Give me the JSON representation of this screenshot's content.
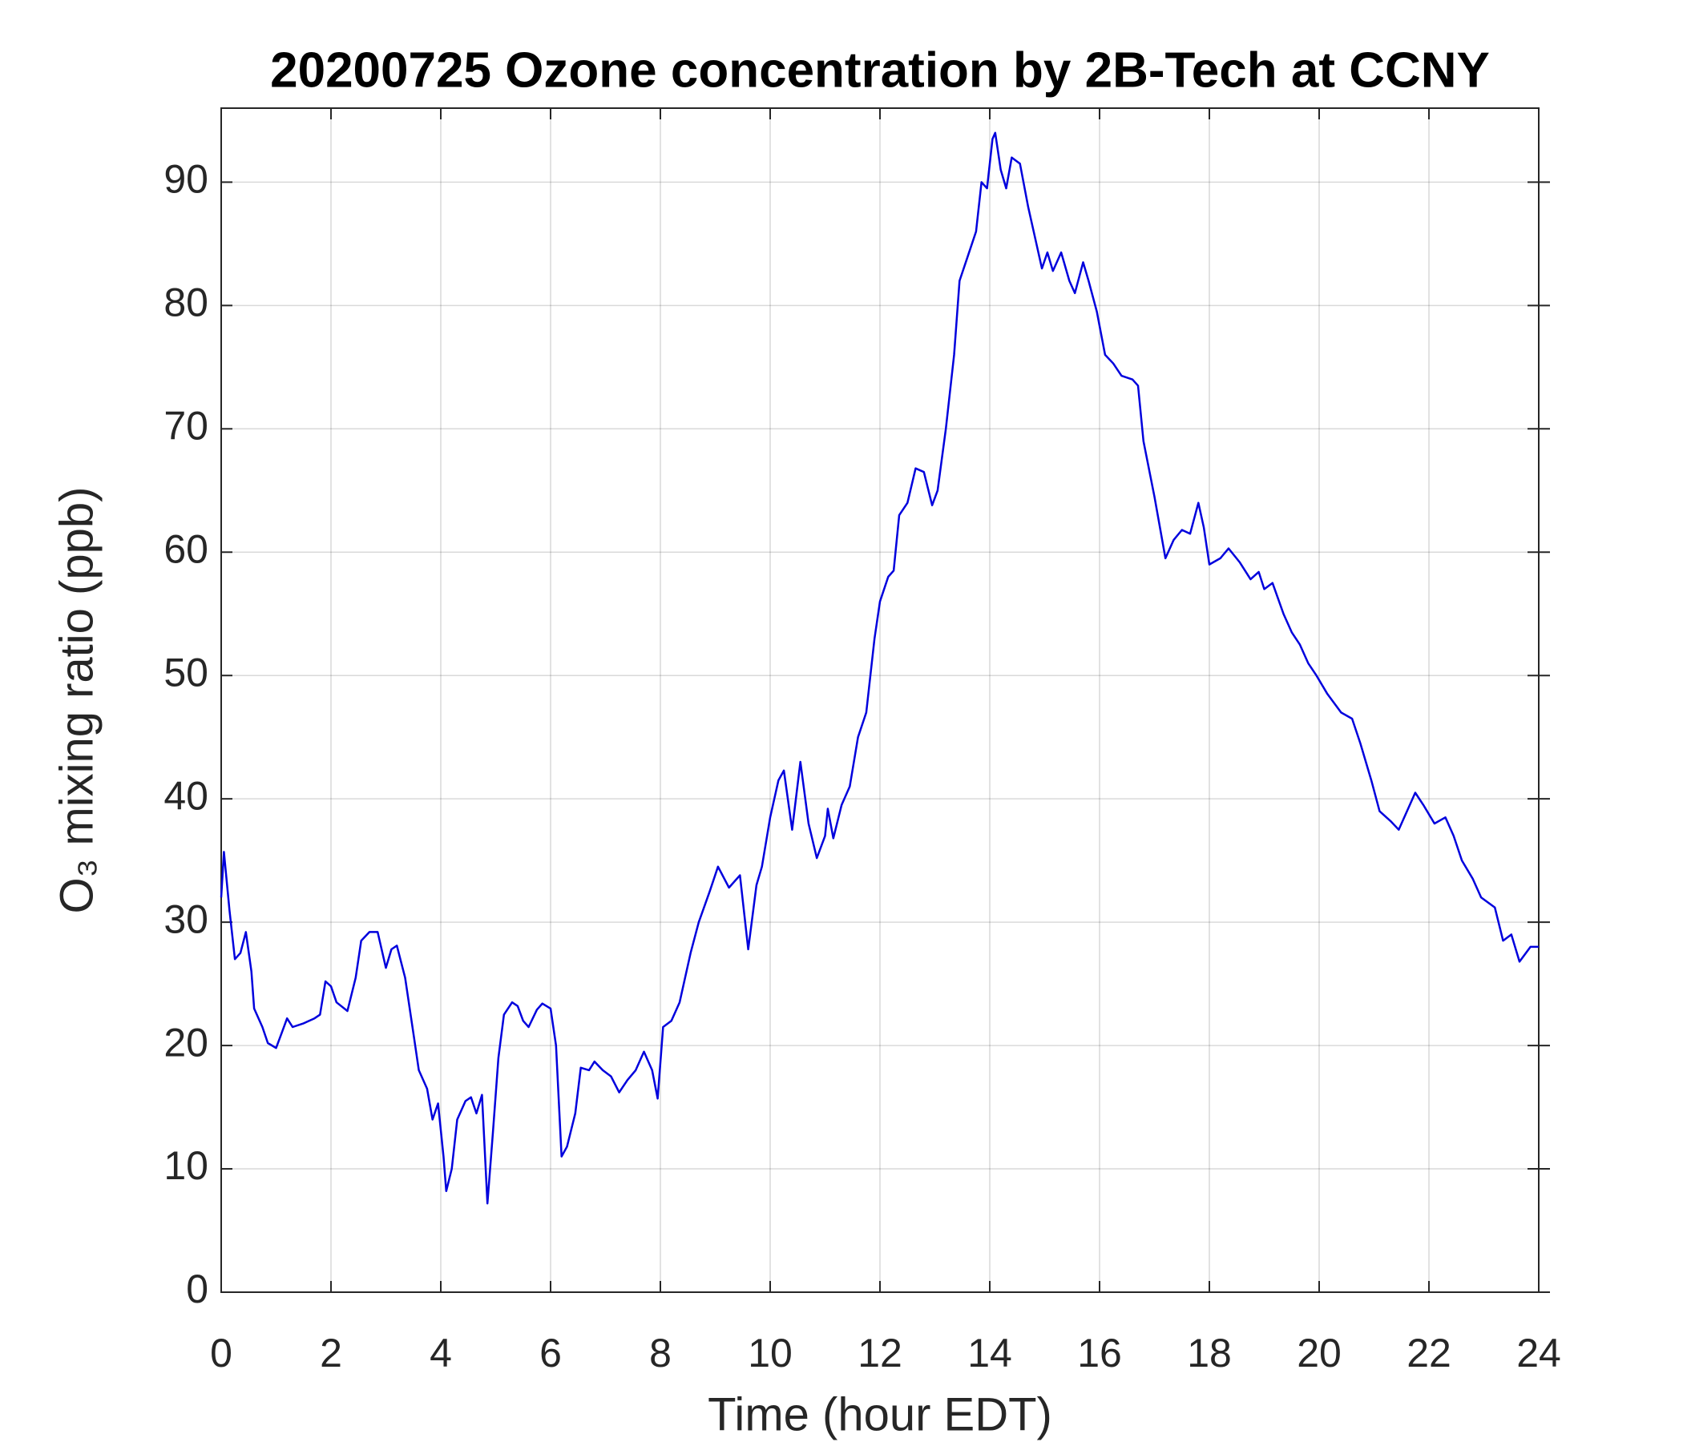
{
  "chart_data": {
    "type": "line",
    "title": "20200725 Ozone concentration by 2B-Tech at CCNY",
    "xlabel": "Time (hour EDT)",
    "ylabel": "O₃ mixing ratio (ppb)",
    "xlim": [
      0,
      24
    ],
    "ylim": [
      0,
      96
    ],
    "xticks": [
      0,
      2,
      4,
      6,
      8,
      10,
      12,
      14,
      16,
      18,
      20,
      22,
      24
    ],
    "yticks": [
      0,
      10,
      20,
      30,
      40,
      50,
      60,
      70,
      80,
      90
    ],
    "grid": true,
    "series": [
      {
        "color": "#0000dd",
        "x": [
          0.0,
          0.05,
          0.15,
          0.25,
          0.35,
          0.45,
          0.55,
          0.6,
          0.75,
          0.85,
          1.0,
          1.1,
          1.2,
          1.3,
          1.5,
          1.7,
          1.8,
          1.9,
          2.0,
          2.1,
          2.3,
          2.45,
          2.55,
          2.7,
          2.85,
          3.0,
          3.1,
          3.2,
          3.35,
          3.5,
          3.6,
          3.75,
          3.85,
          3.95,
          4.05,
          4.1,
          4.2,
          4.3,
          4.45,
          4.55,
          4.65,
          4.75,
          4.85,
          4.95,
          5.05,
          5.15,
          5.3,
          5.4,
          5.5,
          5.6,
          5.75,
          5.85,
          6.0,
          6.1,
          6.2,
          6.3,
          6.45,
          6.55,
          6.7,
          6.8,
          6.95,
          7.1,
          7.25,
          7.4,
          7.55,
          7.7,
          7.85,
          7.95,
          8.05,
          8.2,
          8.35,
          8.55,
          8.7,
          8.9,
          9.05,
          9.25,
          9.45,
          9.6,
          9.75,
          9.85,
          10.0,
          10.15,
          10.25,
          10.4,
          10.55,
          10.7,
          10.85,
          11.0,
          11.05,
          11.15,
          11.3,
          11.45,
          11.6,
          11.75,
          11.9,
          12.0,
          12.15,
          12.25,
          12.35,
          12.5,
          12.65,
          12.8,
          12.95,
          13.05,
          13.2,
          13.35,
          13.45,
          13.6,
          13.75,
          13.85,
          13.95,
          14.05,
          14.1,
          14.2,
          14.3,
          14.4,
          14.55,
          14.7,
          14.8,
          14.95,
          15.05,
          15.15,
          15.3,
          15.45,
          15.55,
          15.7,
          15.8,
          15.95,
          16.1,
          16.25,
          16.4,
          16.6,
          16.7,
          16.8,
          17.0,
          17.2,
          17.35,
          17.5,
          17.65,
          17.8,
          17.9,
          18.0,
          18.2,
          18.35,
          18.55,
          18.75,
          18.9,
          19.0,
          19.15,
          19.35,
          19.5,
          19.65,
          19.8,
          19.95,
          20.15,
          20.4,
          20.6,
          20.75,
          20.95,
          21.1,
          21.3,
          21.45,
          21.6,
          21.75,
          21.9,
          22.1,
          22.3,
          22.45,
          22.6,
          22.8,
          22.95,
          23.2,
          23.35,
          23.5,
          23.65,
          23.85,
          24.0
        ],
        "values": [
          32,
          35.7,
          31,
          27,
          27.5,
          29.2,
          26,
          23,
          21.5,
          20.2,
          19.8,
          21,
          22.2,
          21.5,
          21.8,
          22.2,
          22.5,
          25.2,
          24.8,
          23.5,
          22.8,
          25.5,
          28.5,
          29.2,
          29.2,
          26.3,
          27.8,
          28.1,
          25.5,
          21,
          18,
          16.5,
          14,
          15.3,
          11,
          8.2,
          10,
          14,
          15.5,
          15.8,
          14.5,
          16,
          7.2,
          13,
          19,
          22.5,
          23.5,
          23.2,
          22,
          21.5,
          22.9,
          23.4,
          23,
          20,
          11,
          11.8,
          14.5,
          18.2,
          18,
          18.7,
          18,
          17.5,
          16.2,
          17.2,
          18,
          19.5,
          18,
          15.7,
          21.5,
          22,
          23.5,
          27.5,
          30,
          32.5,
          34.5,
          32.8,
          33.8,
          27.8,
          33,
          34.5,
          38.5,
          41.5,
          42.3,
          37.5,
          43,
          38,
          35.2,
          37,
          39.2,
          36.8,
          39.5,
          41,
          45,
          47,
          53,
          56,
          58,
          58.5,
          63,
          64,
          66.8,
          66.5,
          63.8,
          65,
          70,
          76,
          82,
          84,
          86,
          90,
          89.5,
          93.5,
          94,
          91,
          89.5,
          92,
          91.5,
          88,
          86,
          83,
          84.3,
          82.8,
          84.3,
          82,
          81,
          83.5,
          82,
          79.5,
          76,
          75.3,
          74.3,
          74,
          73.5,
          69,
          64.5,
          59.5,
          61,
          61.8,
          61.5,
          64,
          62,
          59,
          59.5,
          60.3,
          59.2,
          57.8,
          58.4,
          57,
          57.5,
          55,
          53.5,
          52.5,
          51,
          50,
          48.5,
          47,
          46.5,
          44.5,
          41.5,
          39,
          38.2,
          37.5,
          39,
          40.5,
          39.5,
          38,
          38.5,
          37,
          35,
          33.5,
          32,
          31.2,
          28.5,
          29,
          26.8,
          28,
          28
        ]
      }
    ]
  }
}
